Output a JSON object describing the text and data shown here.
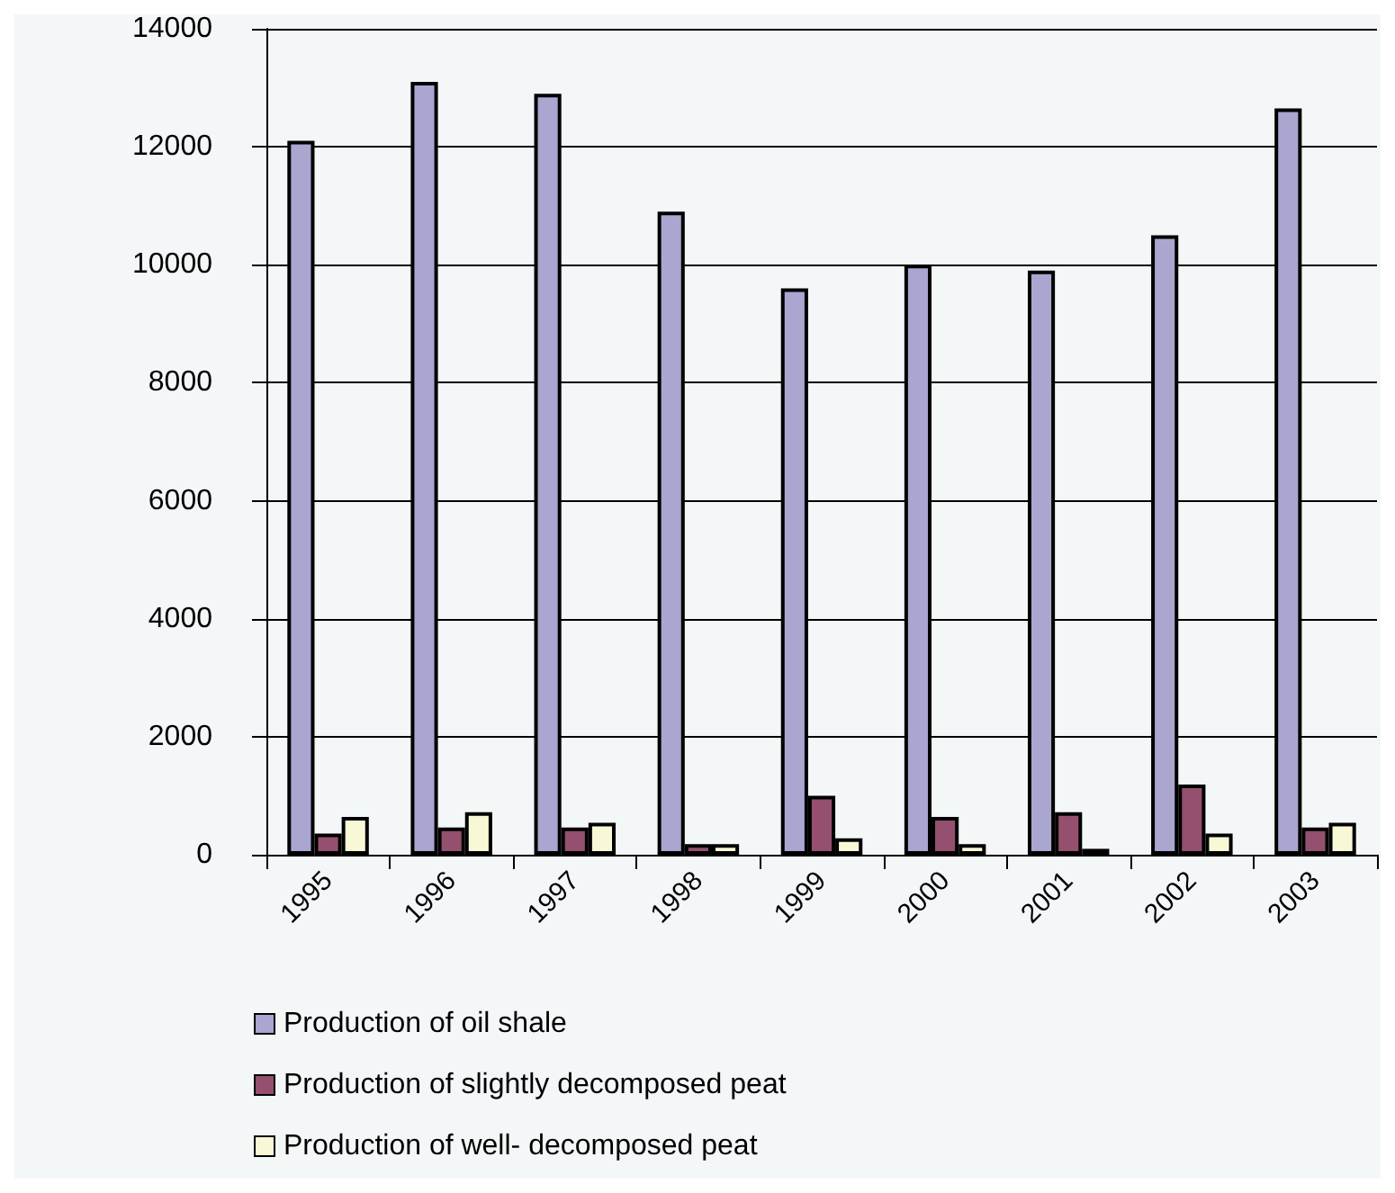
{
  "chart_data": {
    "type": "bar",
    "categories": [
      "1995",
      "1996",
      "1997",
      "1998",
      "1999",
      "2000",
      "2001",
      "2002",
      "2003"
    ],
    "series": [
      {
        "name": "Production of oil shale",
        "color": "#a9a6d0",
        "values": [
          12100,
          13100,
          12900,
          10900,
          9600,
          10000,
          9900,
          10500,
          12650
        ]
      },
      {
        "name": "Production of slightly decomposed peat",
        "color": "#94506e",
        "values": [
          360,
          460,
          460,
          180,
          1000,
          640,
          720,
          1190,
          460
        ]
      },
      {
        "name": "Production of well- decomposed peat",
        "color": "#f8f8d6",
        "values": [
          640,
          720,
          540,
          180,
          280,
          180,
          100,
          360,
          540
        ]
      }
    ],
    "ylim": [
      0,
      14000
    ],
    "yticks": [
      0,
      2000,
      4000,
      6000,
      8000,
      10000,
      12000,
      14000
    ],
    "grid": "y",
    "legend": "bottom left"
  }
}
